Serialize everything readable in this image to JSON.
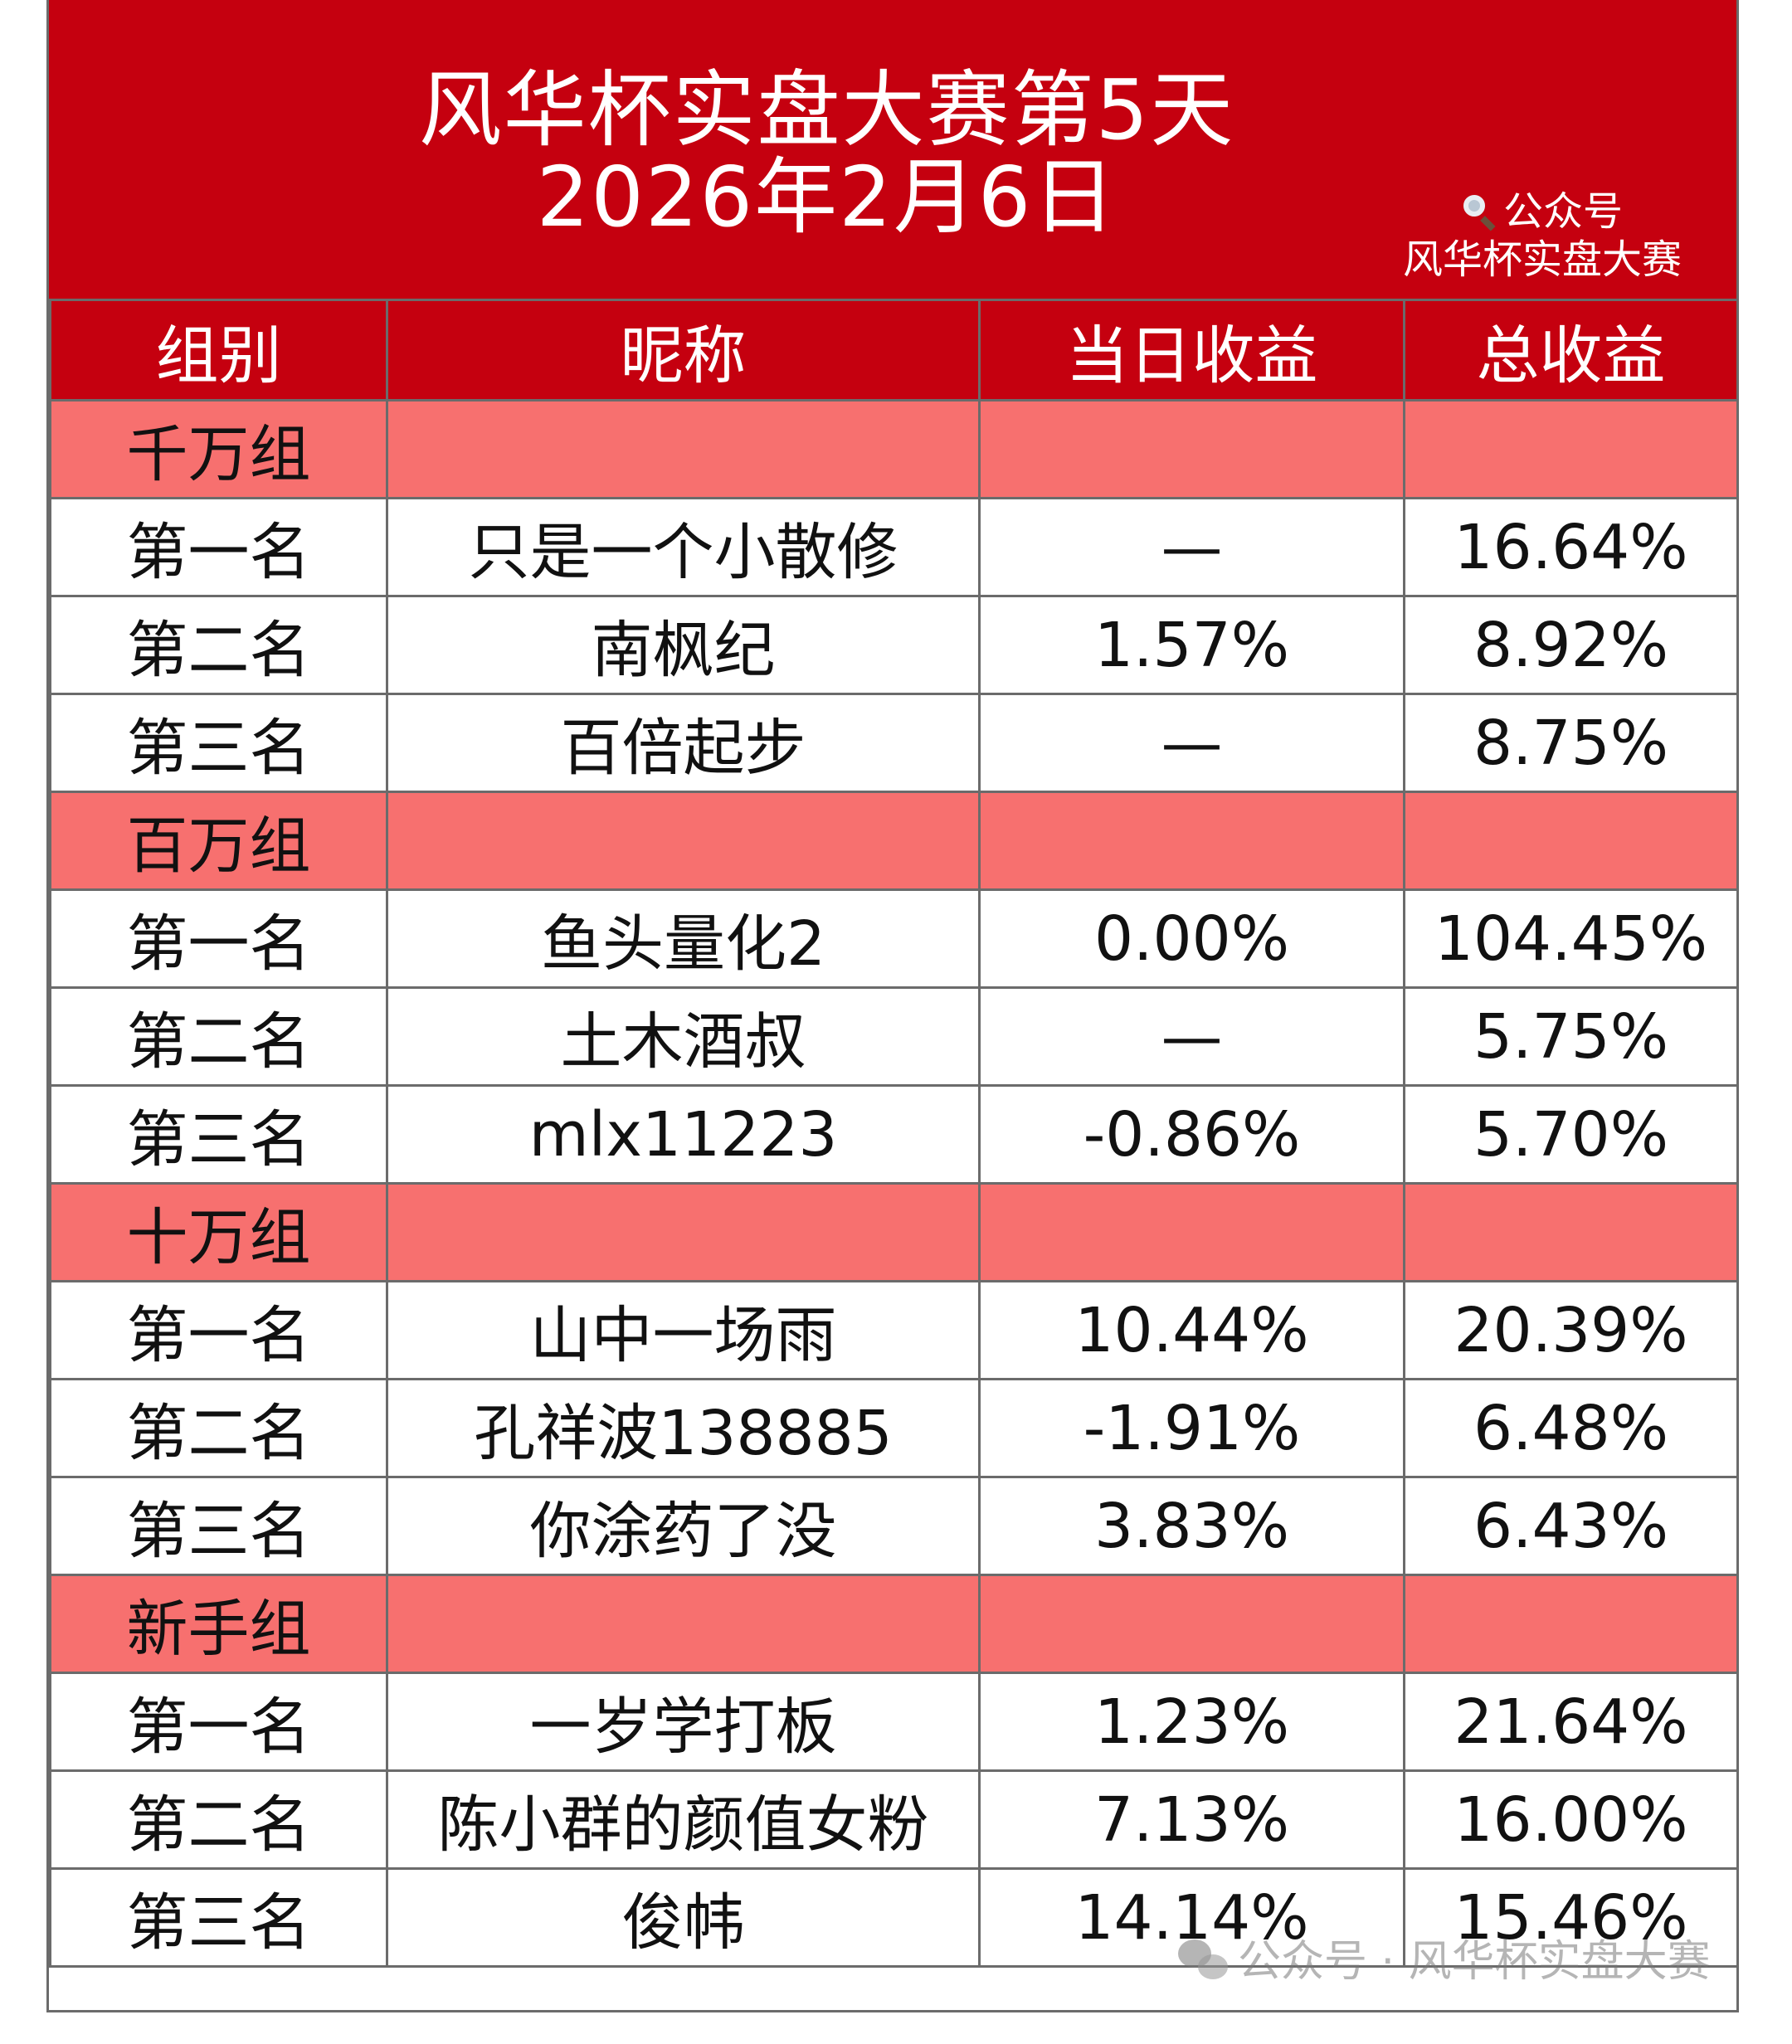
{
  "header": {
    "title": "风华杯实盘大赛第5天",
    "date": "2026年2月6日",
    "account_label": "公众号",
    "account_name": "风华杯实盘大赛"
  },
  "table": {
    "columns": [
      "组别",
      "昵称",
      "当日收益",
      "总收益"
    ],
    "groups": [
      {
        "name": "千万组",
        "rows": [
          {
            "rank": "第一名",
            "nickname": "只是一个小散修",
            "daily": "—",
            "total": "16.64%"
          },
          {
            "rank": "第二名",
            "nickname": "南枫纪",
            "daily": "1.57%",
            "total": "8.92%"
          },
          {
            "rank": "第三名",
            "nickname": "百倍起步",
            "daily": "—",
            "total": "8.75%"
          }
        ]
      },
      {
        "name": "百万组",
        "rows": [
          {
            "rank": "第一名",
            "nickname": "鱼头量化2",
            "daily": "0.00%",
            "total": "104.45%"
          },
          {
            "rank": "第二名",
            "nickname": "土木酒叔",
            "daily": "—",
            "total": "5.75%"
          },
          {
            "rank": "第三名",
            "nickname": "mlx11223",
            "daily": "-0.86%",
            "total": "5.70%"
          }
        ]
      },
      {
        "name": "十万组",
        "rows": [
          {
            "rank": "第一名",
            "nickname": "山中一场雨",
            "daily": "10.44%",
            "total": "20.39%"
          },
          {
            "rank": "第二名",
            "nickname": "孔祥波138885",
            "daily": "-1.91%",
            "total": "6.48%"
          },
          {
            "rank": "第三名",
            "nickname": "你涂药了没",
            "daily": "3.83%",
            "total": "6.43%"
          }
        ]
      },
      {
        "name": "新手组",
        "rows": [
          {
            "rank": "第一名",
            "nickname": "一岁学打板",
            "daily": "1.23%",
            "total": "21.64%"
          },
          {
            "rank": "第二名",
            "nickname": "陈小群的颜值女粉",
            "daily": "7.13%",
            "total": "16.00%"
          },
          {
            "rank": "第三名",
            "nickname": "俊帏",
            "daily": "14.14%",
            "total": "15.46%"
          }
        ]
      }
    ]
  },
  "watermark": {
    "text": "公众号 · 风华杯实盘大赛"
  },
  "colors": {
    "header_red": "#c5000f",
    "group_pink": "#f7706f",
    "grid": "#6b6b6b"
  },
  "icons": {
    "account": "search-icon",
    "watermark": "wechat-icon"
  }
}
